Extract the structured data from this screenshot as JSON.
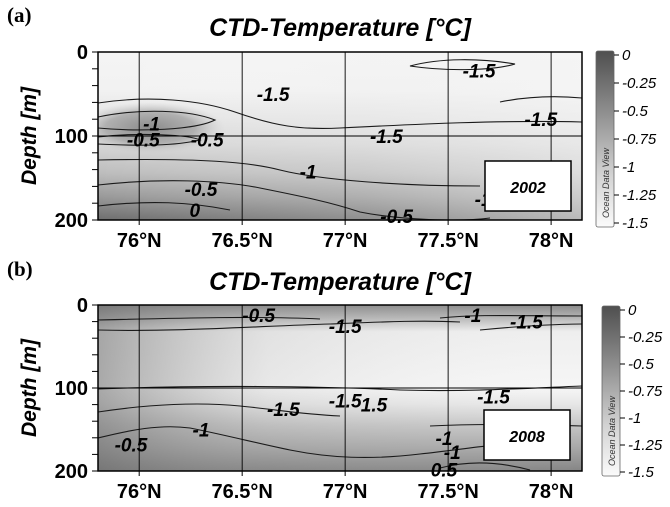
{
  "chart_data": [
    {
      "type": "heatmap",
      "panel_label": "(a)",
      "title": "CTD-Temperature [°C]",
      "ylabel": "Depth [m]",
      "xlabel": "",
      "x_ticks": [
        "76°N",
        "76.5°N",
        "77°N",
        "77.5°N",
        "78°N"
      ],
      "x_tick_values": [
        76,
        76.5,
        77,
        77.5,
        78
      ],
      "xlim": [
        75.8,
        78.15
      ],
      "y_ticks": [
        "0",
        "100",
        "200"
      ],
      "y_tick_values": [
        0,
        100,
        200
      ],
      "ylim": [
        0,
        200
      ],
      "y_reversed": true,
      "colorbar": {
        "ticks": [
          "0",
          "-0.25",
          "-0.5",
          "-0.75",
          "-1",
          "-1.25",
          "-1.5"
        ],
        "range": [
          -1.5,
          0
        ],
        "watermark": "Ocean Data View",
        "color_low": "#f8f8f8",
        "color_high": "#555555"
      },
      "year_label": "2002",
      "contour_labels": [
        {
          "text": "-1.5",
          "lat": 77.65,
          "depth": 22
        },
        {
          "text": "-1.5",
          "lat": 76.65,
          "depth": 50
        },
        {
          "text": "-1.5",
          "lat": 77.95,
          "depth": 80
        },
        {
          "text": "-1.5",
          "lat": 77.2,
          "depth": 100
        },
        {
          "text": "-1",
          "lat": 76.06,
          "depth": 85
        },
        {
          "text": "-0.5",
          "lat": 76.02,
          "depth": 104
        },
        {
          "text": "-0.5",
          "lat": 76.33,
          "depth": 104
        },
        {
          "text": "-1",
          "lat": 76.82,
          "depth": 142
        },
        {
          "text": "-0.5",
          "lat": 76.3,
          "depth": 163
        },
        {
          "text": "0",
          "lat": 76.27,
          "depth": 188
        },
        {
          "text": "-0.5",
          "lat": 77.25,
          "depth": 195
        },
        {
          "text": "-1",
          "lat": 77.67,
          "depth": 175
        }
      ]
    },
    {
      "type": "heatmap",
      "panel_label": "(b)",
      "title": "CTD-Temperature [°C]",
      "ylabel": "Depth [m]",
      "xlabel": "",
      "x_ticks": [
        "76°N",
        "76.5°N",
        "77°N",
        "77.5°N",
        "78°N"
      ],
      "x_tick_values": [
        76,
        76.5,
        77,
        77.5,
        78
      ],
      "xlim": [
        75.8,
        78.15
      ],
      "y_ticks": [
        "0",
        "100",
        "200"
      ],
      "y_tick_values": [
        0,
        100,
        200
      ],
      "ylim": [
        0,
        200
      ],
      "y_reversed": true,
      "colorbar": {
        "ticks": [
          "0",
          "-0.25",
          "-0.5",
          "-0.75",
          "-1",
          "-1.25",
          "-1.5"
        ],
        "range": [
          -1.5,
          0
        ],
        "watermark": "Ocean Data View",
        "color_low": "#f8f8f8",
        "color_high": "#555555"
      },
      "year_label": "2008",
      "contour_labels": [
        {
          "text": "-0.5",
          "lat": 76.58,
          "depth": 12
        },
        {
          "text": "-1.5",
          "lat": 77.0,
          "depth": 25
        },
        {
          "text": "-1",
          "lat": 77.62,
          "depth": 12
        },
        {
          "text": "-1.5",
          "lat": 77.88,
          "depth": 20
        },
        {
          "text": "-1.5",
          "lat": 76.7,
          "depth": 125
        },
        {
          "text": "-1.5",
          "lat": 77.0,
          "depth": 115
        },
        {
          "text": "1.5",
          "lat": 77.14,
          "depth": 120
        },
        {
          "text": "-1.5",
          "lat": 77.72,
          "depth": 110
        },
        {
          "text": "-1",
          "lat": 76.3,
          "depth": 150
        },
        {
          "text": "-0.5",
          "lat": 75.96,
          "depth": 168
        },
        {
          "text": "-1",
          "lat": 77.48,
          "depth": 160
        },
        {
          "text": "-1",
          "lat": 77.52,
          "depth": 177
        },
        {
          "text": "0.5",
          "lat": 77.48,
          "depth": 198
        }
      ]
    }
  ]
}
